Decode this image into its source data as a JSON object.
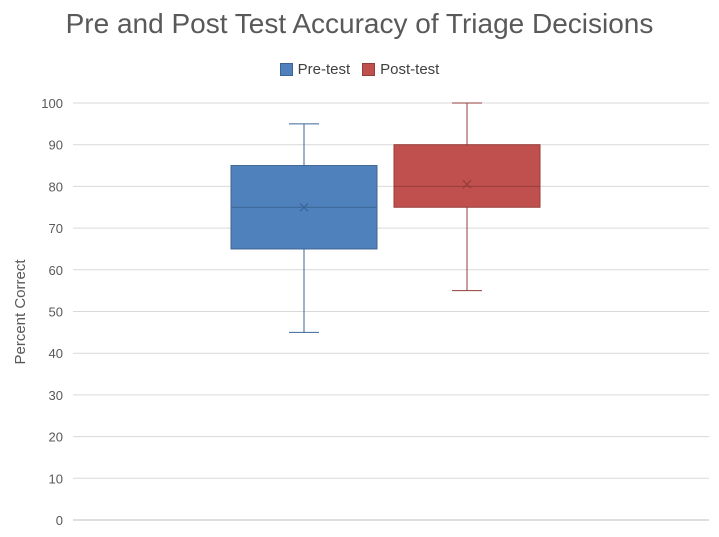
{
  "chart_data": {
    "type": "box",
    "title": "Pre and Post Test Accuracy of Triage Decisions",
    "xlabel": "",
    "ylabel": "Percent Correct",
    "ylim": [
      0,
      100
    ],
    "yticks": [
      0,
      10,
      20,
      30,
      40,
      50,
      60,
      70,
      80,
      90,
      100
    ],
    "grid": true,
    "legend_position": "top",
    "series": [
      {
        "name": "Pre-test",
        "color": "#4f81bd",
        "edge": "#3c6494",
        "min": 45,
        "q1": 65,
        "median": 75,
        "q3": 85,
        "max": 95,
        "mean": 75
      },
      {
        "name": "Post-test",
        "color": "#c0504d",
        "edge": "#963c3a",
        "min": 55,
        "q1": 75,
        "median": 80,
        "q3": 90,
        "max": 100,
        "mean": 80.5
      }
    ]
  }
}
